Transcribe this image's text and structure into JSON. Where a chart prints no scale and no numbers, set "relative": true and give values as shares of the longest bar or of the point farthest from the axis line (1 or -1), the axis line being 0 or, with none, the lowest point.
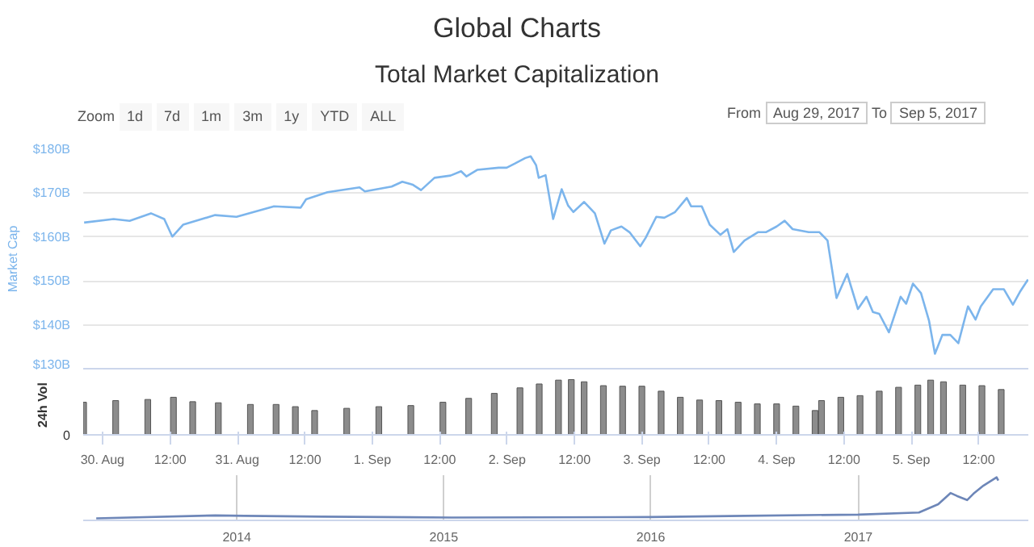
{
  "chart_data": [
    {
      "type": "line",
      "title": "Global Charts",
      "subtitle": "Total Market Capitalization",
      "ylabel": "Market Cap",
      "annotations": [
        "Zoom",
        "1d",
        "7d",
        "1m",
        "3m",
        "1y",
        "YTD",
        "ALL",
        "From",
        "Aug 29, 2017",
        "To",
        "Sep 5, 2017"
      ],
      "x": [
        "2017-08-29T20:40",
        "2017-08-30T01:55",
        "2017-08-30T04:46",
        "2017-08-30T08:34",
        "2017-08-30T10:56",
        "2017-08-30T12:22",
        "2017-08-30T14:17",
        "2017-08-30T20:00",
        "2017-08-30T23:48",
        "2017-08-31T06:29",
        "2017-08-31T11:14",
        "2017-08-31T12:12",
        "2017-08-31T16:00",
        "2017-08-31T21:43",
        "2017-08-31T22:40",
        "2017-09-01T03:26",
        "2017-09-01T05:20",
        "2017-09-01T07:14",
        "2017-09-01T08:40",
        "2017-09-01T11:04",
        "2017-09-01T13:55",
        "2017-09-01T15:48",
        "2017-09-01T16:46",
        "2017-09-01T18:40",
        "2017-09-01T22:29",
        "2017-09-01T23:55",
        "2017-09-02T01:20",
        "2017-09-02T03:14",
        "2017-09-02T04:12",
        "2017-09-02T05:09",
        "2017-09-02T05:38",
        "2017-09-02T06:51",
        "2017-09-02T08:12",
        "2017-09-02T09:43",
        "2017-09-02T10:51",
        "2017-09-02T11:48",
        "2017-09-02T13:43",
        "2017-09-02T15:38",
        "2017-09-02T17:20",
        "2017-09-02T18:29",
        "2017-09-02T20:22",
        "2017-09-02T21:48",
        "2017-09-02T23:43",
        "2017-09-03T00:40",
        "2017-09-03T02:34",
        "2017-09-03T04:00",
        "2017-09-03T05:55",
        "2017-09-03T08:00",
        "2017-09-03T08:46",
        "2017-09-03T10:40",
        "2017-09-03T12:05",
        "2017-09-03T14:00",
        "2017-09-03T15:14",
        "2017-09-03T16:22",
        "2017-09-03T18:17",
        "2017-09-03T20:40",
        "2017-09-03T22:05",
        "2017-09-04T00:00",
        "2017-09-04T01:26",
        "2017-09-04T02:51",
        "2017-09-04T05:43",
        "2017-09-04T07:38",
        "2017-09-04T09:04",
        "2017-09-04T10:40",
        "2017-09-04T12:34",
        "2017-09-04T14:29",
        "2017-09-04T16:00",
        "2017-09-04T17:09",
        "2017-09-04T18:17",
        "2017-09-04T20:00",
        "2017-09-04T22:05",
        "2017-09-04T23:04",
        "2017-09-05T00:17",
        "2017-09-05T01:43",
        "2017-09-05T03:09",
        "2017-09-05T04:12",
        "2017-09-05T05:31",
        "2017-09-05T06:56",
        "2017-09-05T08:22",
        "2017-09-05T10:05",
        "2017-09-05T11:26",
        "2017-09-05T12:22",
        "2017-09-05T14:34",
        "2017-09-05T16:29",
        "2017-09-05T18:05",
        "2017-09-05T19:20",
        "2017-09-05T20:46"
      ],
      "series": [
        {
          "color": "#7cb5ec",
          "values": [
            163.3,
            164.1,
            163.7,
            165.4,
            164.1,
            160.1,
            162.8,
            165.0,
            164.6,
            167.0,
            166.7,
            168.6,
            170.2,
            171.3,
            170.4,
            171.5,
            172.6,
            171.9,
            170.7,
            173.5,
            174.0,
            175.0,
            173.8,
            175.3,
            175.8,
            175.8,
            176.7,
            178.0,
            178.4,
            176.4,
            173.5,
            174.1,
            164.1,
            170.9,
            167.2,
            165.7,
            168.0,
            165.4,
            158.5,
            161.5,
            162.4,
            161.1,
            157.9,
            159.8,
            164.6,
            164.4,
            165.7,
            168.9,
            167.0,
            167.0,
            162.8,
            160.5,
            161.8,
            156.6,
            159.2,
            161.1,
            161.1,
            162.4,
            163.7,
            161.8,
            161.1,
            161.1,
            159.2,
            146.1,
            151.6,
            143.6,
            146.4,
            142.9,
            142.5,
            138.3,
            146.4,
            144.8,
            149.4,
            147.2,
            140.9,
            133.4,
            137.7,
            137.7,
            135.8,
            144.2,
            141.2,
            144.2,
            148.1,
            148.1,
            144.6,
            147.5,
            150.3
          ]
        }
      ],
      "xlim": [
        "2017-08-29T20:30",
        "2017-09-05T20:50"
      ],
      "ylim": [
        130,
        180
      ],
      "yticks": [
        {
          "value": 130,
          "label": "$130B"
        },
        {
          "value": 140,
          "label": "$140B"
        },
        {
          "value": 150,
          "label": "$150B"
        },
        {
          "value": 160,
          "label": "$160B"
        },
        {
          "value": 170,
          "label": "$170B"
        },
        {
          "value": 180,
          "label": "$180B"
        }
      ],
      "tick_labels": "y",
      "grid": "y"
    },
    {
      "type": "bar",
      "ylabel": "24h Vol",
      "relative": true,
      "annotations": [
        "0"
      ],
      "color": "#8c8c8c",
      "x": [
        "2017-08-29T20:34",
        "2017-08-30T02:17",
        "2017-08-30T08:00",
        "2017-08-30T12:34",
        "2017-08-30T16:00",
        "2017-08-30T20:34",
        "2017-08-31T02:17",
        "2017-08-31T06:51",
        "2017-08-31T10:17",
        "2017-08-31T13:43",
        "2017-08-31T19:26",
        "2017-09-01T01:09",
        "2017-09-01T06:51",
        "2017-09-01T12:34",
        "2017-09-01T17:09",
        "2017-09-01T21:43",
        "2017-09-02T02:17",
        "2017-09-02T05:43",
        "2017-09-02T09:09",
        "2017-09-02T11:26",
        "2017-09-02T13:43",
        "2017-09-02T17:09",
        "2017-09-02T20:34",
        "2017-09-03T00:00",
        "2017-09-03T03:26",
        "2017-09-03T06:51",
        "2017-09-03T10:17",
        "2017-09-03T13:43",
        "2017-09-03T17:09",
        "2017-09-03T20:34",
        "2017-09-04T00:00",
        "2017-09-04T03:26",
        "2017-09-04T06:51",
        "2017-09-04T08:00",
        "2017-09-04T11:26",
        "2017-09-04T14:51",
        "2017-09-04T18:17",
        "2017-09-04T21:43",
        "2017-09-05T01:09",
        "2017-09-05T03:26",
        "2017-09-05T05:43",
        "2017-09-05T09:09",
        "2017-09-05T12:34",
        "2017-09-05T16:00"
      ],
      "values": [
        0.59,
        0.62,
        0.64,
        0.68,
        0.6,
        0.58,
        0.55,
        0.55,
        0.51,
        0.44,
        0.48,
        0.51,
        0.53,
        0.59,
        0.66,
        0.75,
        0.85,
        0.92,
        0.99,
        1.0,
        0.96,
        0.89,
        0.88,
        0.88,
        0.79,
        0.68,
        0.63,
        0.62,
        0.59,
        0.56,
        0.56,
        0.52,
        0.44,
        0.62,
        0.68,
        0.71,
        0.79,
        0.86,
        0.9,
        0.99,
        0.96,
        0.9,
        0.89,
        0.82
      ],
      "xlim": [
        "2017-08-29T20:30",
        "2017-09-05T20:50"
      ],
      "xticks": [
        {
          "value": "2017-08-30",
          "label": "30. Aug"
        },
        {
          "value": "2017-08-30T12:00",
          "label": "12:00"
        },
        {
          "value": "2017-08-31",
          "label": "31. Aug"
        },
        {
          "value": "2017-08-31T12:00",
          "label": "12:00"
        },
        {
          "value": "2017-09-01",
          "label": "1. Sep"
        },
        {
          "value": "2017-09-01T12:00",
          "label": "12:00"
        },
        {
          "value": "2017-09-02",
          "label": "2. Sep"
        },
        {
          "value": "2017-09-02T12:00",
          "label": "12:00"
        },
        {
          "value": "2017-09-03",
          "label": "3. Sep"
        },
        {
          "value": "2017-09-03T12:00",
          "label": "12:00"
        },
        {
          "value": "2017-09-04",
          "label": "4. Sep"
        },
        {
          "value": "2017-09-04T12:00",
          "label": "12:00"
        },
        {
          "value": "2017-09-05",
          "label": "5. Sep"
        },
        {
          "value": "2017-09-05T12:00",
          "label": "12:00"
        }
      ],
      "tick_labels": "x"
    },
    {
      "type": "line",
      "relative": true,
      "x": [
        "2013-04-28",
        "2013-11-24",
        "2014-01-15",
        "2014-06-01",
        "2015-01-15",
        "2016-01-01",
        "2016-06-15",
        "2017-01-01",
        "2017-04-18",
        "2017-05-22",
        "2017-06-13",
        "2017-06-24",
        "2017-07-12",
        "2017-07-23",
        "2017-08-10",
        "2017-09-02",
        "2017-09-05"
      ],
      "series": [
        {
          "color": "#6d86b8",
          "values": [
            0.01,
            0.08,
            0.07,
            0.05,
            0.03,
            0.04,
            0.07,
            0.1,
            0.15,
            0.35,
            0.62,
            0.55,
            0.45,
            0.6,
            0.8,
            1.0,
            0.92
          ]
        }
      ],
      "xlim": [
        "2013-04-05",
        "2017-10-28"
      ],
      "xticks": [
        {
          "value": "2014-01-01",
          "label": "2014"
        },
        {
          "value": "2015-01-01",
          "label": "2015"
        },
        {
          "value": "2016-01-01",
          "label": "2016"
        },
        {
          "value": "2017-01-01",
          "label": "2017"
        }
      ],
      "tick_labels": "x",
      "grid": "x"
    }
  ]
}
